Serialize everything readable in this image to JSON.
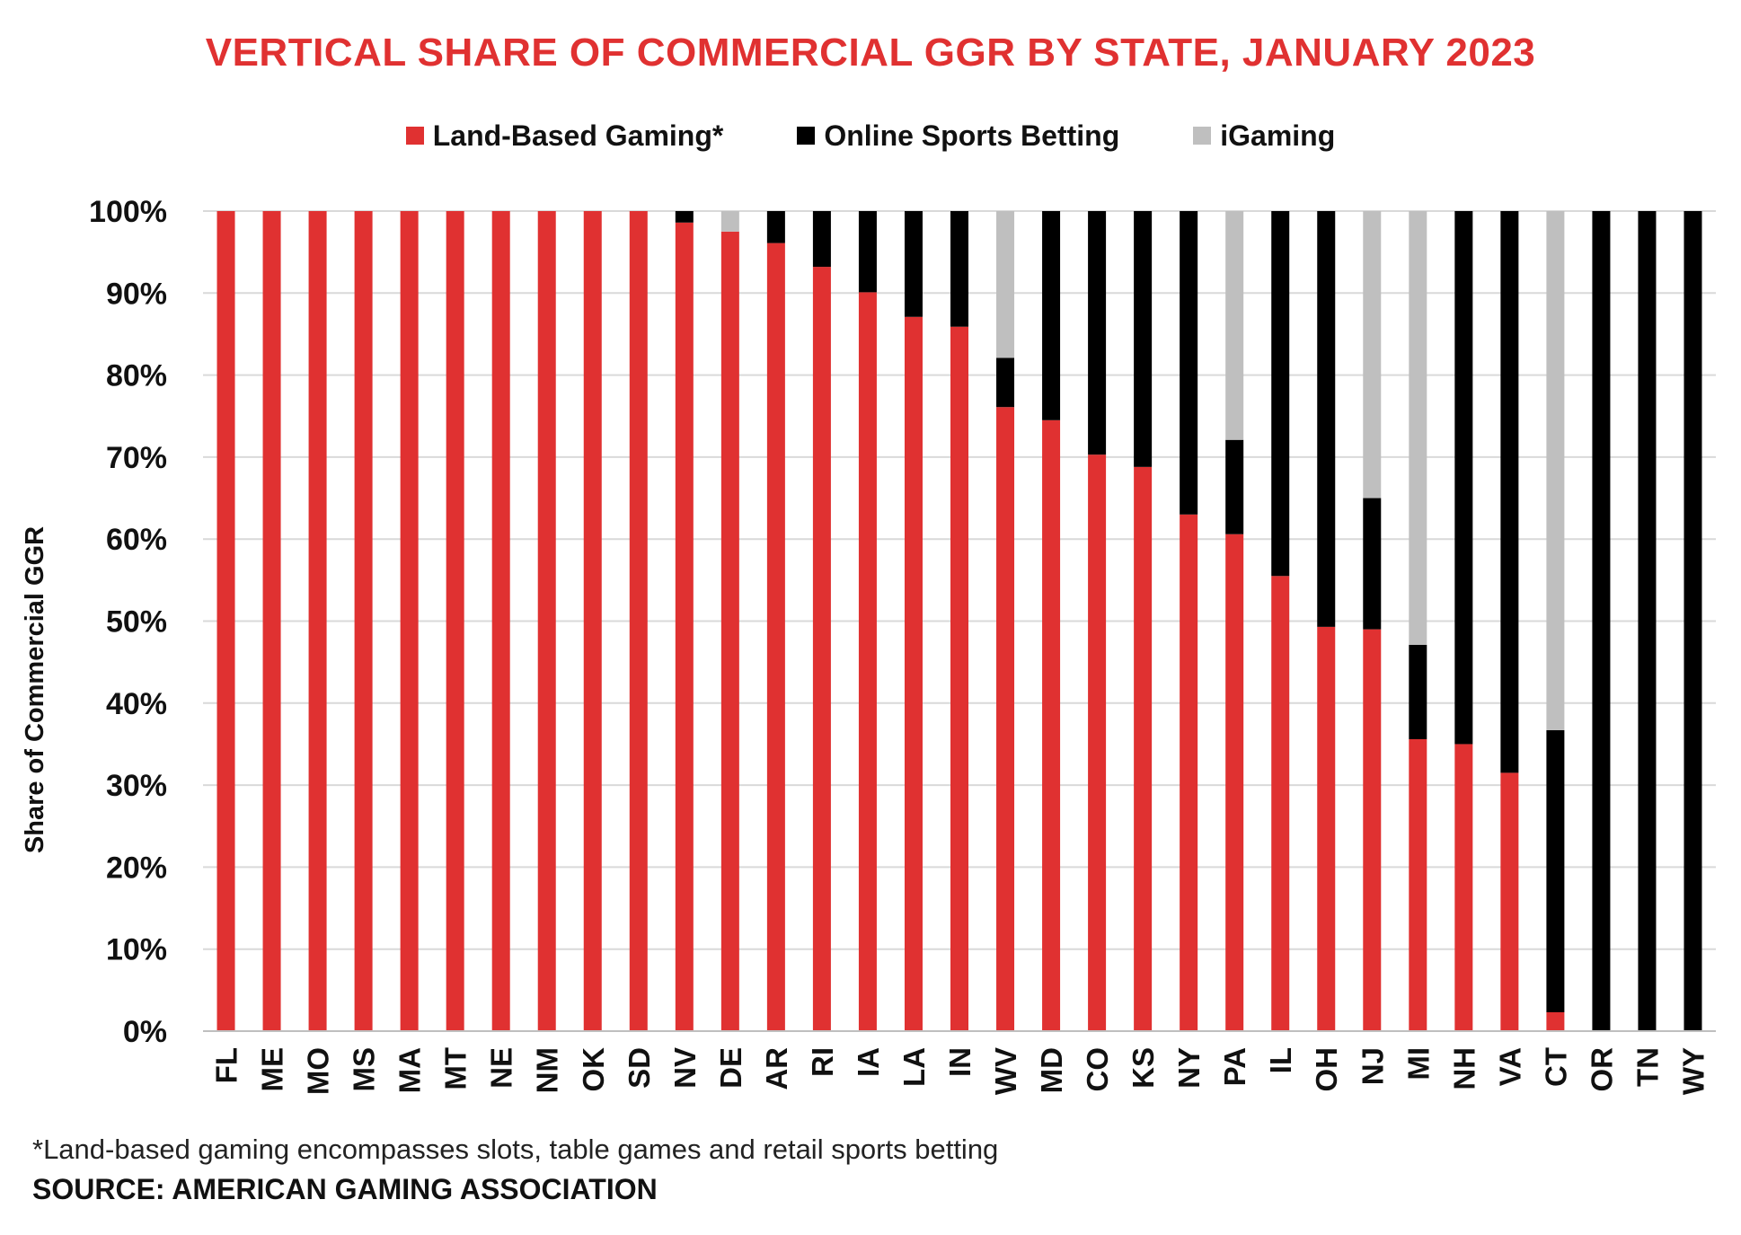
{
  "chart_data": {
    "type": "bar",
    "stacked": true,
    "title": "VERTICAL SHARE OF COMMERCIAL GGR BY STATE, JANUARY 2023",
    "ylabel": "Share of Commercial GGR",
    "xlabel": "",
    "ylim": [
      0,
      100
    ],
    "yticks": [
      "0%",
      "10%",
      "20%",
      "30%",
      "40%",
      "50%",
      "60%",
      "70%",
      "80%",
      "90%",
      "100%"
    ],
    "grid": true,
    "legend_position": "top",
    "categories": [
      "FL",
      "ME",
      "MO",
      "MS",
      "MA",
      "MT",
      "NE",
      "NM",
      "OK",
      "SD",
      "NV",
      "DE",
      "AR",
      "RI",
      "IA",
      "LA",
      "IN",
      "WV",
      "MD",
      "CO",
      "KS",
      "NY",
      "PA",
      "IL",
      "OH",
      "NJ",
      "MI",
      "NH",
      "VA",
      "CT",
      "OR",
      "TN",
      "WY"
    ],
    "series": [
      {
        "name": "Land-Based Gaming*",
        "color": "#e03131",
        "values": [
          100,
          100,
          100,
          100,
          100,
          100,
          100,
          100,
          100,
          100,
          98.6,
          97.5,
          96.1,
          93.2,
          90.1,
          87.1,
          85.9,
          76.1,
          74.5,
          70.3,
          68.8,
          63.0,
          60.6,
          55.5,
          49.3,
          49.0,
          35.6,
          35.0,
          31.5,
          2.3,
          0,
          0,
          0
        ]
      },
      {
        "name": "Online Sports Betting",
        "color": "#000000",
        "values": [
          0,
          0,
          0,
          0,
          0,
          0,
          0,
          0,
          0,
          0,
          1.4,
          0,
          3.9,
          6.8,
          9.9,
          12.9,
          14.1,
          6.0,
          25.5,
          29.7,
          31.2,
          37.0,
          11.5,
          44.5,
          50.7,
          16.0,
          11.5,
          65.0,
          68.5,
          34.4,
          100,
          100,
          100
        ]
      },
      {
        "name": "iGaming",
        "color": "#bfbfbf",
        "values": [
          0,
          0,
          0,
          0,
          0,
          0,
          0,
          0,
          0,
          0,
          0,
          2.5,
          0,
          0,
          0,
          0,
          0,
          17.9,
          0,
          0,
          0,
          0,
          27.9,
          0,
          0,
          35.0,
          52.9,
          0,
          0,
          63.3,
          0,
          0,
          0
        ]
      }
    ]
  },
  "footnote": "*Land-based gaming encompasses slots, table games and retail sports betting",
  "source": "SOURCE: AMERICAN GAMING ASSOCIATION"
}
